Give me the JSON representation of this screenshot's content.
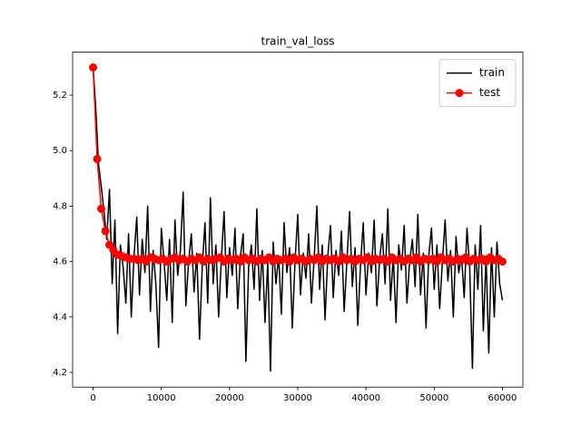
{
  "chart_data": {
    "type": "line",
    "title": "train_val_loss",
    "xlim": [
      -3000,
      63000
    ],
    "xticks": [
      0,
      10000,
      20000,
      30000,
      40000,
      50000,
      60000
    ],
    "ylim": [
      4.147,
      5.355
    ],
    "yticks": [
      4.2,
      4.4,
      4.6,
      4.8,
      {
        "value": 5,
        "label": "5.0"
      },
      5.2
    ],
    "grid": false,
    "legend": "upper right",
    "series": [
      {
        "name": "train",
        "color": "#000000",
        "marker": false,
        "x": [
          0,
          400,
          800,
          1200,
          1600,
          2000,
          2400,
          2800,
          3200,
          3600,
          4000,
          4400,
          4800,
          5200,
          5600,
          6000,
          6400,
          6800,
          7200,
          7600,
          8000,
          8400,
          8800,
          9200,
          9600,
          10000,
          10400,
          10800,
          11200,
          11600,
          12000,
          12400,
          12800,
          13200,
          13600,
          14000,
          14400,
          14800,
          15200,
          15600,
          16000,
          16400,
          16800,
          17200,
          17600,
          18000,
          18400,
          18800,
          19200,
          19600,
          20000,
          20400,
          20800,
          21200,
          21600,
          22000,
          22400,
          22800,
          23200,
          23600,
          24000,
          24400,
          24800,
          25200,
          25600,
          26000,
          26400,
          26800,
          27200,
          27600,
          28000,
          28400,
          28800,
          29200,
          29600,
          30000,
          30400,
          30800,
          31200,
          31600,
          32000,
          32400,
          32800,
          33200,
          33600,
          34000,
          34400,
          34800,
          35200,
          35600,
          36000,
          36400,
          36800,
          37200,
          37600,
          38000,
          38400,
          38800,
          39200,
          39600,
          40000,
          40400,
          40800,
          41200,
          41600,
          42000,
          42400,
          42800,
          43200,
          43600,
          44000,
          44400,
          44800,
          45200,
          45600,
          46000,
          46400,
          46800,
          47200,
          47600,
          48000,
          48400,
          48800,
          49200,
          49600,
          50000,
          50400,
          50800,
          51200,
          51600,
          52000,
          52400,
          52800,
          53200,
          53600,
          54000,
          54400,
          54800,
          55200,
          55600,
          56000,
          56400,
          56800,
          57200,
          57600,
          58000,
          58400,
          58800,
          59200,
          59600,
          60000
        ],
        "values": [
          5.3,
          5.15,
          4.95,
          4.87,
          4.78,
          4.68,
          4.86,
          4.52,
          4.75,
          4.34,
          4.66,
          4.58,
          4.45,
          4.7,
          4.4,
          4.62,
          4.76,
          4.48,
          4.68,
          4.56,
          4.8,
          4.42,
          4.64,
          4.52,
          4.29,
          4.72,
          4.6,
          4.46,
          4.68,
          4.38,
          4.75,
          4.55,
          4.64,
          4.85,
          4.44,
          4.6,
          4.7,
          4.49,
          4.63,
          4.32,
          4.58,
          4.74,
          4.45,
          4.83,
          4.52,
          4.66,
          4.4,
          4.61,
          4.78,
          4.47,
          4.65,
          4.55,
          4.72,
          4.43,
          4.62,
          4.7,
          4.24,
          4.58,
          4.66,
          4.5,
          4.79,
          4.46,
          4.64,
          4.38,
          4.6,
          4.205,
          4.67,
          4.52,
          4.62,
          4.41,
          4.74,
          4.56,
          4.65,
          4.36,
          4.6,
          4.77,
          4.48,
          4.63,
          4.54,
          4.7,
          4.45,
          4.61,
          4.8,
          4.5,
          4.66,
          4.39,
          4.62,
          4.73,
          4.47,
          4.64,
          4.55,
          4.71,
          4.42,
          4.6,
          4.78,
          4.51,
          4.65,
          4.37,
          4.59,
          4.74,
          4.48,
          4.63,
          4.56,
          4.75,
          4.44,
          4.61,
          4.7,
          4.52,
          4.79,
          4.46,
          4.62,
          4.38,
          4.66,
          4.57,
          4.73,
          4.45,
          4.6,
          4.68,
          4.51,
          4.77,
          4.48,
          4.63,
          4.36,
          4.62,
          4.72,
          4.5,
          4.66,
          4.43,
          4.6,
          4.75,
          4.53,
          4.64,
          4.4,
          4.69,
          4.56,
          4.62,
          4.47,
          4.72,
          4.58,
          4.215,
          4.66,
          4.5,
          4.73,
          4.35,
          4.62,
          4.27,
          4.65,
          4.4,
          4.67,
          4.52,
          4.46
        ]
      },
      {
        "name": "test",
        "color": "#ff0000",
        "marker": true,
        "x": [
          0,
          600,
          1200,
          1800,
          2400,
          3000,
          3600,
          4200,
          4800,
          5400,
          6000,
          6600,
          7200,
          7800,
          8400,
          9000,
          9600,
          10200,
          10800,
          11400,
          12000,
          12600,
          13200,
          13800,
          14400,
          15000,
          15600,
          16200,
          16800,
          17400,
          18000,
          18600,
          19200,
          19800,
          20400,
          21000,
          21600,
          22200,
          22800,
          23400,
          24000,
          24600,
          25200,
          25800,
          26400,
          27000,
          27600,
          28200,
          28800,
          29400,
          30000,
          30600,
          31200,
          31800,
          32400,
          33000,
          33600,
          34200,
          34800,
          35400,
          36000,
          36600,
          37200,
          37800,
          38400,
          39000,
          39600,
          40200,
          40800,
          41400,
          42000,
          42600,
          43200,
          43800,
          44400,
          45000,
          45600,
          46200,
          46800,
          47400,
          48000,
          48600,
          49200,
          49800,
          50400,
          51000,
          51600,
          52200,
          52800,
          53400,
          54000,
          54600,
          55200,
          55800,
          56400,
          57000,
          57600,
          58200,
          58800,
          59400,
          60000
        ],
        "values": [
          5.3,
          4.97,
          4.79,
          4.71,
          4.66,
          4.64,
          4.625,
          4.62,
          4.615,
          4.61,
          4.61,
          4.605,
          4.61,
          4.6,
          4.615,
          4.61,
          4.605,
          4.61,
          4.6,
          4.61,
          4.615,
          4.605,
          4.61,
          4.6,
          4.61,
          4.605,
          4.615,
          4.6,
          4.61,
          4.605,
          4.61,
          4.615,
          4.6,
          4.61,
          4.605,
          4.61,
          4.6,
          4.615,
          4.605,
          4.61,
          4.6,
          4.61,
          4.605,
          4.615,
          4.6,
          4.61,
          4.605,
          4.61,
          4.6,
          4.615,
          4.605,
          4.61,
          4.6,
          4.61,
          4.605,
          4.615,
          4.6,
          4.61,
          4.605,
          4.61,
          4.6,
          4.615,
          4.605,
          4.61,
          4.6,
          4.61,
          4.605,
          4.615,
          4.6,
          4.61,
          4.605,
          4.61,
          4.6,
          4.615,
          4.605,
          4.61,
          4.6,
          4.61,
          4.605,
          4.615,
          4.6,
          4.61,
          4.605,
          4.61,
          4.6,
          4.615,
          4.605,
          4.61,
          4.6,
          4.61,
          4.605,
          4.615,
          4.6,
          4.61,
          4.605,
          4.61,
          4.6,
          4.615,
          4.605,
          4.61,
          4.6
        ]
      }
    ]
  }
}
